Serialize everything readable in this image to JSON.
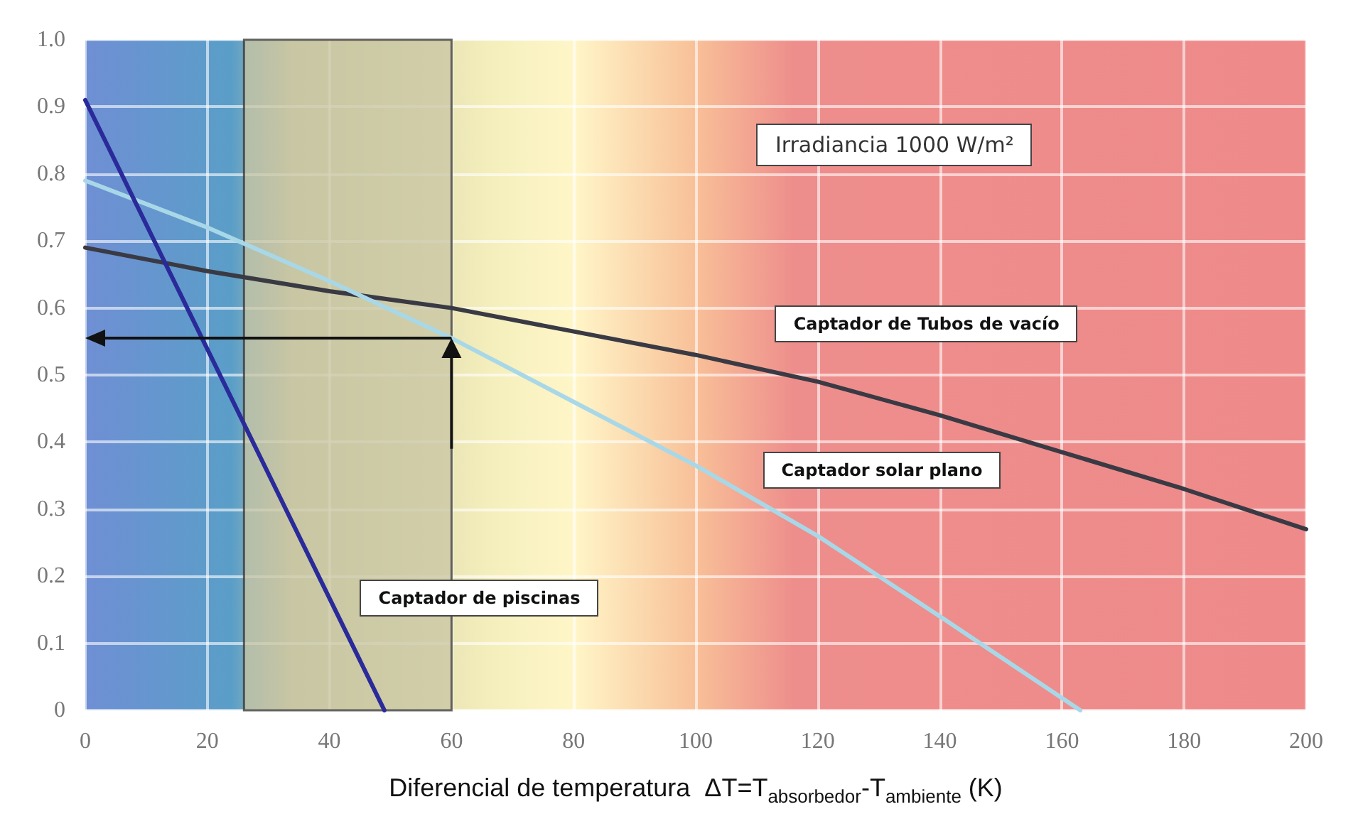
{
  "chart_data": {
    "type": "line",
    "xlabel": "Diferencial de temperatura  ΔT=T$_{absorbedor}$-T$_{ambiente}$ (K)",
    "annotations": [
      "Irradiancia 1000 W/m²"
    ],
    "series": [
      {
        "name": "Captador de Tubos de vacío",
        "color": "#3a3a44",
        "x": [
          0,
          20,
          40,
          60,
          80,
          100,
          120,
          140,
          160,
          180,
          200
        ],
        "values": [
          0.69,
          0.655,
          0.625,
          0.6,
          0.565,
          0.53,
          0.49,
          0.44,
          0.385,
          0.33,
          0.27
        ]
      },
      {
        "name": "Captador solar plano",
        "color": "#a8d8e8",
        "x": [
          0,
          20,
          40,
          60,
          80,
          100,
          120,
          140,
          163
        ],
        "values": [
          0.79,
          0.72,
          0.64,
          0.555,
          0.46,
          0.365,
          0.26,
          0.14,
          0
        ]
      },
      {
        "name": "Captador de piscinas",
        "color": "#2a2a9a",
        "x": [
          0,
          49
        ],
        "values": [
          0.91,
          0
        ]
      }
    ],
    "bands": [
      {
        "axis": "x",
        "from": 26,
        "to": 60,
        "color": "#c8c6a4"
      }
    ],
    "xlim": [
      0,
      200
    ],
    "xticks": [
      0,
      20,
      40,
      60,
      80,
      100,
      120,
      140,
      160,
      180,
      200
    ],
    "ylim": [
      0,
      1
    ],
    "yticks": [
      0,
      0.1,
      0.2,
      0.3,
      0.4,
      0.5,
      0.6,
      0.7,
      0.8,
      0.9,
      {
        "value": 1,
        "label": "1.0"
      }
    ],
    "grid": true,
    "marker": "none",
    "line_style": "solid",
    "legend": false
  }
}
